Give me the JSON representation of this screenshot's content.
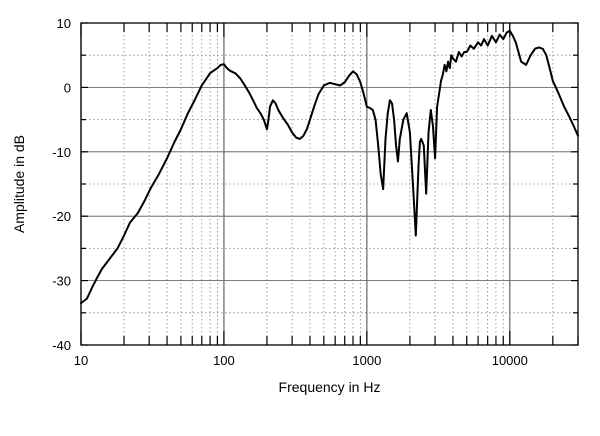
{
  "chart_data": {
    "type": "line",
    "title": "",
    "xlabel": "Frequency in Hz",
    "ylabel": "Amplitude in dB",
    "xscale": "log",
    "xlim": [
      10,
      30000
    ],
    "ylim": [
      -40,
      10
    ],
    "x_tick_labels": [
      "10",
      "100",
      "1000",
      "10000"
    ],
    "y_tick_labels": [
      "10",
      "0",
      "-10",
      "-20",
      "-30",
      "-40"
    ],
    "grid": "dotted minor, solid major",
    "line_color": "#000000",
    "series": [
      {
        "x": [
          10,
          11,
          12,
          13,
          14,
          16,
          18,
          20,
          22,
          25,
          28,
          31,
          35,
          40,
          45,
          50,
          56,
          63,
          70,
          80,
          90,
          95,
          100,
          105,
          110,
          120,
          130,
          140,
          150,
          160,
          170,
          180,
          190,
          200,
          205,
          210,
          220,
          230,
          240,
          260,
          280,
          300,
          320,
          340,
          360,
          380,
          400,
          430,
          460,
          500,
          550,
          600,
          650,
          700,
          750,
          800,
          850,
          900,
          950,
          1000,
          1050,
          1100,
          1150,
          1200,
          1250,
          1300,
          1350,
          1400,
          1450,
          1500,
          1550,
          1600,
          1650,
          1700,
          1800,
          1900,
          2000,
          2100,
          2200,
          2300,
          2350,
          2400,
          2450,
          2500,
          2600,
          2700,
          2800,
          2900,
          3000,
          3100,
          3200,
          3300,
          3400,
          3500,
          3600,
          3700,
          3800,
          3900,
          4000,
          4200,
          4400,
          4600,
          4800,
          5000,
          5300,
          5600,
          6000,
          6300,
          6600,
          7000,
          7500,
          8000,
          8500,
          9000,
          9500,
          10000,
          10500,
          11000,
          11500,
          12000,
          13000,
          14000,
          15000,
          16000,
          17000,
          18000,
          19000,
          20000,
          22000,
          24000,
          26000,
          28000,
          30000
        ],
        "y": [
          -33.5,
          -32.8,
          -31.0,
          -29.5,
          -28.2,
          -26.5,
          -25.0,
          -23.0,
          -21.0,
          -19.5,
          -17.5,
          -15.5,
          -13.5,
          -11.0,
          -8.5,
          -6.5,
          -4.0,
          -1.8,
          0.3,
          2.2,
          3.0,
          3.5,
          3.6,
          3.0,
          2.6,
          2.2,
          1.4,
          0.3,
          -0.8,
          -2.0,
          -3.2,
          -4.0,
          -5.0,
          -6.5,
          -5.0,
          -3.0,
          -2.0,
          -2.5,
          -3.5,
          -4.8,
          -5.8,
          -7.0,
          -7.8,
          -8.0,
          -7.5,
          -6.5,
          -5.0,
          -2.8,
          -1.0,
          0.3,
          0.7,
          0.5,
          0.3,
          0.8,
          1.8,
          2.5,
          2.0,
          0.8,
          -1.0,
          -3.0,
          -3.2,
          -3.5,
          -5.0,
          -9.0,
          -13.5,
          -15.8,
          -8.0,
          -4.0,
          -2.0,
          -2.5,
          -5.0,
          -9.0,
          -11.5,
          -8.0,
          -5.0,
          -4.0,
          -7.0,
          -15.0,
          -23.0,
          -12.0,
          -8.5,
          -8.0,
          -8.5,
          -9.0,
          -16.5,
          -7.0,
          -3.5,
          -6.0,
          -11.0,
          -3.0,
          -1.0,
          1.0,
          2.0,
          3.5,
          2.5,
          4.0,
          3.0,
          5.0,
          4.5,
          4.0,
          5.5,
          4.8,
          5.5,
          5.5,
          6.5,
          6.0,
          7.0,
          6.5,
          7.5,
          6.5,
          8.0,
          7.0,
          8.2,
          7.5,
          8.5,
          8.8,
          8.0,
          7.0,
          5.5,
          4.0,
          3.5,
          5.0,
          6.0,
          6.2,
          6.0,
          5.0,
          3.0,
          1.0,
          -1.0,
          -3.0,
          -4.5,
          -6.0,
          -7.5
        ]
      }
    ]
  }
}
